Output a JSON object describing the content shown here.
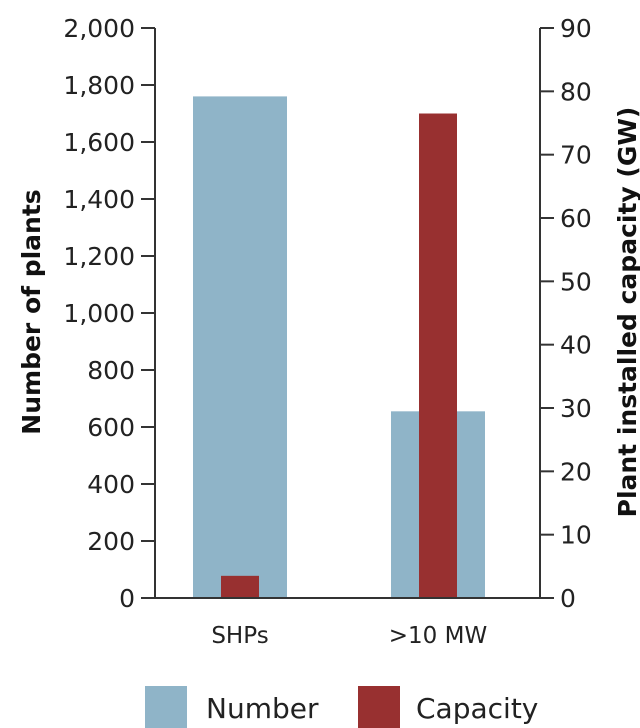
{
  "chart_data": {
    "type": "bar",
    "categories": [
      "SHPs",
      ">10 MW"
    ],
    "series": [
      {
        "name": "Number",
        "axis": "left",
        "color": "#8fb4c8",
        "values": [
          1760,
          655
        ]
      },
      {
        "name": "Capacity",
        "axis": "right",
        "color": "#983030",
        "values": [
          3.5,
          76.5
        ]
      }
    ],
    "ylabel": "Number of plants",
    "y2label": "Plant installed capacity (GW)",
    "ylim": [
      0,
      2000
    ],
    "y2lim": [
      0,
      90
    ],
    "yticks": [
      "0",
      "200",
      "400",
      "600",
      "800",
      "1,000",
      "1,200",
      "1,400",
      "1,600",
      "1,800",
      "2,000"
    ],
    "y2ticks": [
      "0",
      "10",
      "20",
      "30",
      "40",
      "50",
      "60",
      "70",
      "80",
      "90"
    ],
    "grid": false,
    "legend_position": "bottom"
  }
}
